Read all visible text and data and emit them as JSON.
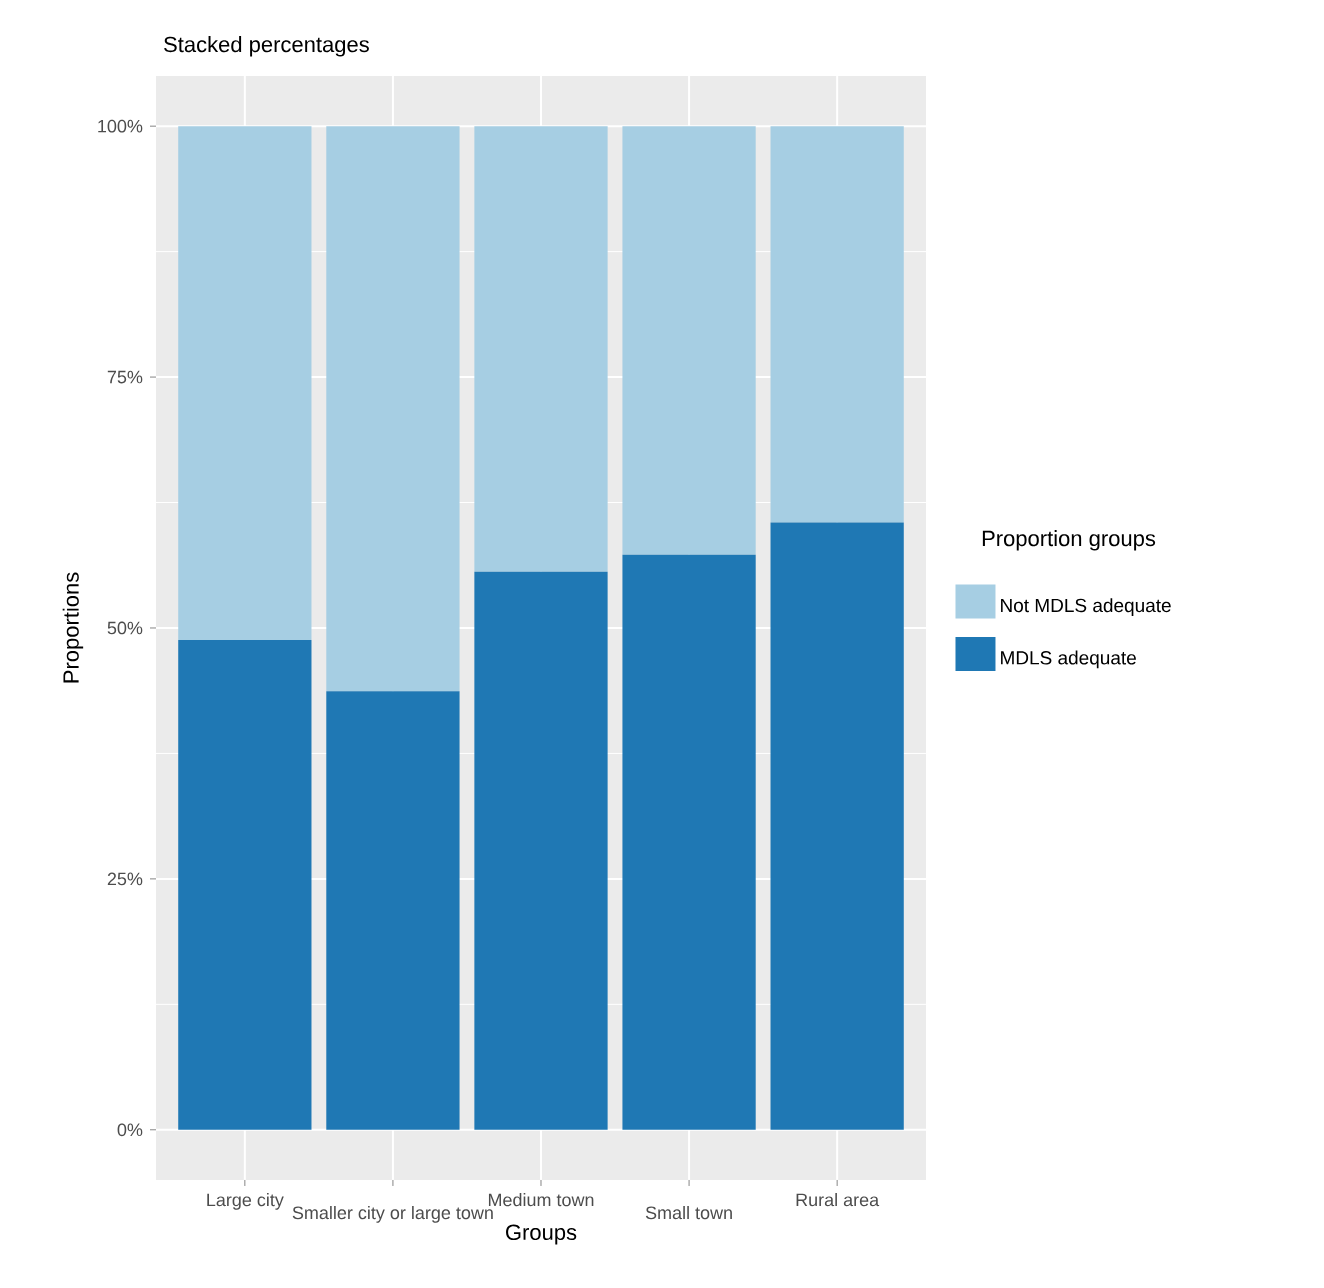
{
  "chart_data": {
    "type": "bar",
    "title": "Stacked percentages",
    "xlabel": "Groups",
    "ylabel": "Proportions",
    "legend_title": "Proportion groups",
    "categories": [
      "Large city",
      "Smaller city or large town",
      "Medium town",
      "Small town",
      "Rural area"
    ],
    "stacked": true,
    "series": [
      {
        "name": "MDLS adequate",
        "color": "#1f78b4",
        "values": [
          48.8,
          43.7,
          55.6,
          57.3,
          60.5
        ]
      },
      {
        "name": "Not MDLS adequate",
        "color": "#a6cee3",
        "values": [
          51.2,
          56.3,
          44.4,
          42.7,
          39.5
        ]
      }
    ],
    "ylim": [
      -5,
      105
    ],
    "yticks": [
      {
        "value": 0,
        "label": "0%"
      },
      {
        "value": 25,
        "label": "25%"
      },
      {
        "value": 50,
        "label": "50%"
      },
      {
        "value": 75,
        "label": "75%"
      },
      {
        "value": 100,
        "label": "100%"
      }
    ],
    "grid": true,
    "legend": "right"
  }
}
